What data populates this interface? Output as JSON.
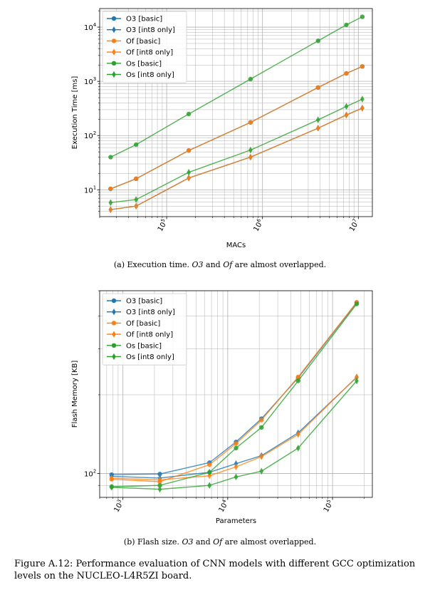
{
  "chart_data": [
    {
      "type": "line",
      "xscale": "log",
      "yscale": "log",
      "xlabel": "MACs",
      "ylabel": "Execution Time [ms]",
      "xlim": [
        20000,
        14000000
      ],
      "ylim": [
        3.2,
        22000
      ],
      "x_ticks": [
        {
          "value": 100000,
          "base": "10",
          "exp": "5"
        },
        {
          "value": 1000000,
          "base": "10",
          "exp": "6"
        },
        {
          "value": 10000000,
          "base": "10",
          "exp": "7"
        }
      ],
      "y_ticks": [
        {
          "value": 10,
          "base": "10",
          "exp": "1"
        },
        {
          "value": 100,
          "base": "10",
          "exp": "2"
        },
        {
          "value": 1000,
          "base": "10",
          "exp": "3"
        },
        {
          "value": 10000,
          "base": "10",
          "exp": "4"
        }
      ],
      "grid": true,
      "legend_position": "top-left",
      "series": [
        {
          "name": "O3 [basic]",
          "color": "#1f77b4",
          "marker": "circle",
          "x": [
            26000,
            48000,
            170000,
            750000,
            3800000,
            7500000,
            11000000
          ],
          "y": [
            10.4,
            16,
            53,
            175,
            770,
            1400,
            1880
          ]
        },
        {
          "name": "O3 [int8 only]",
          "color": "#1f77b4",
          "marker": "diamond",
          "x": [
            26000,
            48000,
            170000,
            750000,
            3800000,
            7500000,
            11000000
          ],
          "y": [
            4.3,
            5,
            16.5,
            40,
            137,
            240,
            320
          ]
        },
        {
          "name": "Of [basic]",
          "color": "#ff7f0e",
          "marker": "circle",
          "x": [
            26000,
            48000,
            170000,
            750000,
            3800000,
            7500000,
            11000000
          ],
          "y": [
            10.4,
            16,
            53,
            175,
            770,
            1400,
            1880
          ]
        },
        {
          "name": "Of [int8 only]",
          "color": "#ff7f0e",
          "marker": "diamond",
          "x": [
            26000,
            48000,
            170000,
            750000,
            3800000,
            7500000,
            11000000
          ],
          "y": [
            4.3,
            5,
            16.5,
            40,
            137,
            240,
            320
          ]
        },
        {
          "name": "Os [basic]",
          "color": "#2ca02c",
          "marker": "circle",
          "x": [
            26000,
            48000,
            170000,
            750000,
            3800000,
            7500000,
            11000000
          ],
          "y": [
            40,
            68,
            250,
            1100,
            5600,
            11000,
            15500
          ]
        },
        {
          "name": "Os [int8 only]",
          "color": "#2ca02c",
          "marker": "diamond",
          "x": [
            26000,
            48000,
            170000,
            750000,
            3800000,
            7500000,
            11000000
          ],
          "y": [
            5.8,
            6.6,
            21,
            54,
            195,
            345,
            470
          ]
        }
      ]
    },
    {
      "type": "line",
      "xscale": "log",
      "yscale": "log",
      "xlabel": "Parameters",
      "ylabel": "Flash Memory [KB]",
      "xlim": [
        600,
        240000
      ],
      "ylim": [
        81,
        500
      ],
      "x_ticks": [
        {
          "value": 1000,
          "base": "10",
          "exp": "3"
        },
        {
          "value": 10000,
          "base": "10",
          "exp": "4"
        },
        {
          "value": 100000,
          "base": "10",
          "exp": "5"
        }
      ],
      "y_ticks": [
        {
          "value": 100,
          "base": "10",
          "exp": "2"
        }
      ],
      "grid": true,
      "legend_position": "top-left",
      "series": [
        {
          "name": "O3 [basic]",
          "color": "#1f77b4",
          "marker": "circle",
          "x": [
            780,
            2250,
            6700,
            12000,
            21000,
            47000,
            170000
          ],
          "y": [
            99,
            99.5,
            110,
            132,
            162,
            232,
            450
          ]
        },
        {
          "name": "O3 [int8 only]",
          "color": "#1f77b4",
          "marker": "diamond",
          "x": [
            780,
            2250,
            6700,
            12000,
            21000,
            47000,
            170000
          ],
          "y": [
            97.5,
            96,
            101,
            109,
            117,
            143,
            233
          ]
        },
        {
          "name": "Of [basic]",
          "color": "#ff7f0e",
          "marker": "circle",
          "x": [
            780,
            2250,
            6700,
            12000,
            21000,
            47000,
            170000
          ],
          "y": [
            95,
            93,
            108,
            130,
            160,
            234,
            452
          ]
        },
        {
          "name": "Of [int8 only]",
          "color": "#ff7f0e",
          "marker": "diamond",
          "x": [
            780,
            2250,
            6700,
            12000,
            21000,
            47000,
            170000
          ],
          "y": [
            96,
            94.5,
            98,
            106,
            116,
            141,
            234
          ]
        },
        {
          "name": "Os [basic]",
          "color": "#2ca02c",
          "marker": "circle",
          "x": [
            780,
            2250,
            6700,
            12000,
            21000,
            47000,
            170000
          ],
          "y": [
            89,
            90,
            101,
            125,
            150,
            226,
            445
          ]
        },
        {
          "name": "Os [int8 only]",
          "color": "#2ca02c",
          "marker": "diamond",
          "x": [
            780,
            2250,
            6700,
            12000,
            21000,
            47000,
            170000
          ],
          "y": [
            88.5,
            87,
            90,
            97,
            102,
            125,
            226
          ]
        }
      ]
    }
  ],
  "captions": {
    "a": {
      "prefix": "(a) Execution time. ",
      "term1": "O3",
      "mid": " and ",
      "term2": "Of",
      "suffix": " are almost overlapped."
    },
    "b": {
      "prefix": "(b) Flash size. ",
      "term1": "O3",
      "mid": " and ",
      "term2": "Of",
      "suffix": " are almost overlapped."
    }
  },
  "figure_caption": {
    "label": "Figure A.12:",
    "text": "Performance evaluation of CNN models with different GCC optimization levels on the NUCLEO-L4R5ZI board."
  }
}
